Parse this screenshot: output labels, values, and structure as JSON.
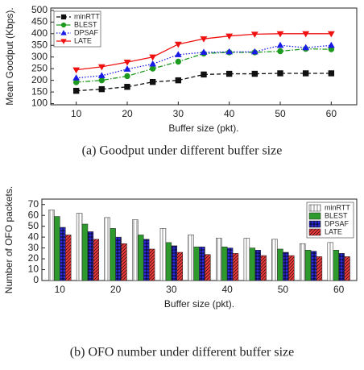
{
  "chart_data": [
    {
      "type": "line",
      "caption": "(a) Goodput under different buffer size",
      "xlabel": "Buffer size (pkt).",
      "ylabel": "Mean Goodput (Kbps).",
      "x": [
        10,
        15,
        20,
        25,
        30,
        35,
        40,
        45,
        50,
        55,
        60
      ],
      "xlim": [
        5,
        65
      ],
      "xticks": [
        10,
        20,
        30,
        40,
        50,
        60
      ],
      "ylim": [
        95,
        510
      ],
      "yticks": [
        100,
        150,
        200,
        250,
        300,
        350,
        400,
        450,
        500
      ],
      "legend": "upper left",
      "series": [
        {
          "name": "minRTT",
          "color": "#111111",
          "marker": "square",
          "dash": "dashed",
          "values": [
            155,
            162,
            172,
            193,
            200,
            225,
            228,
            228,
            230,
            230,
            230
          ]
        },
        {
          "name": "BLEST",
          "color": "#1e9a1e",
          "marker": "circle",
          "dash": "dashdot",
          "values": [
            192,
            200,
            218,
            250,
            280,
            315,
            320,
            320,
            325,
            335,
            333
          ]
        },
        {
          "name": "DPSAF",
          "color": "#1a1ae6",
          "marker": "triangle",
          "dash": "dotted",
          "values": [
            210,
            220,
            248,
            270,
            310,
            320,
            322,
            322,
            350,
            340,
            350
          ]
        },
        {
          "name": "LATE",
          "color": "#f01010",
          "marker": "triangle-down",
          "dash": "solid",
          "values": [
            245,
            258,
            278,
            300,
            355,
            378,
            390,
            398,
            400,
            400,
            400
          ]
        }
      ]
    },
    {
      "type": "bar",
      "caption": "(b) OFO number under different buffer size",
      "xlabel": "Buffer size (pkt).",
      "ylabel": "Number of OFO packets.",
      "categories": [
        "10",
        null,
        "20",
        null,
        "30",
        null,
        "40",
        null,
        "50",
        null,
        "60"
      ],
      "ylim": [
        0,
        75
      ],
      "yticks": [
        0,
        10,
        20,
        30,
        40,
        50,
        60,
        70
      ],
      "legend": "upper right",
      "series": [
        {
          "name": "minRTT",
          "color": "#ffffff",
          "pattern": "vertical",
          "values": [
            65,
            62,
            58,
            56,
            48,
            42,
            39,
            39,
            38,
            34,
            35
          ]
        },
        {
          "name": "BLEST",
          "color": "#2e9a2e",
          "pattern": "solid",
          "values": [
            59,
            52,
            48,
            42,
            35,
            31,
            31,
            30,
            29,
            28,
            28
          ]
        },
        {
          "name": "DPSAF",
          "color": "#2a2ad8",
          "pattern": "grid",
          "values": [
            49,
            45,
            40,
            38,
            32,
            31,
            30,
            28,
            26,
            27,
            25
          ]
        },
        {
          "name": "LATE",
          "color": "#e83a3a",
          "pattern": "diagonal",
          "values": [
            42,
            38,
            34,
            29,
            26,
            24,
            25,
            23,
            23,
            22,
            22
          ]
        }
      ]
    }
  ]
}
